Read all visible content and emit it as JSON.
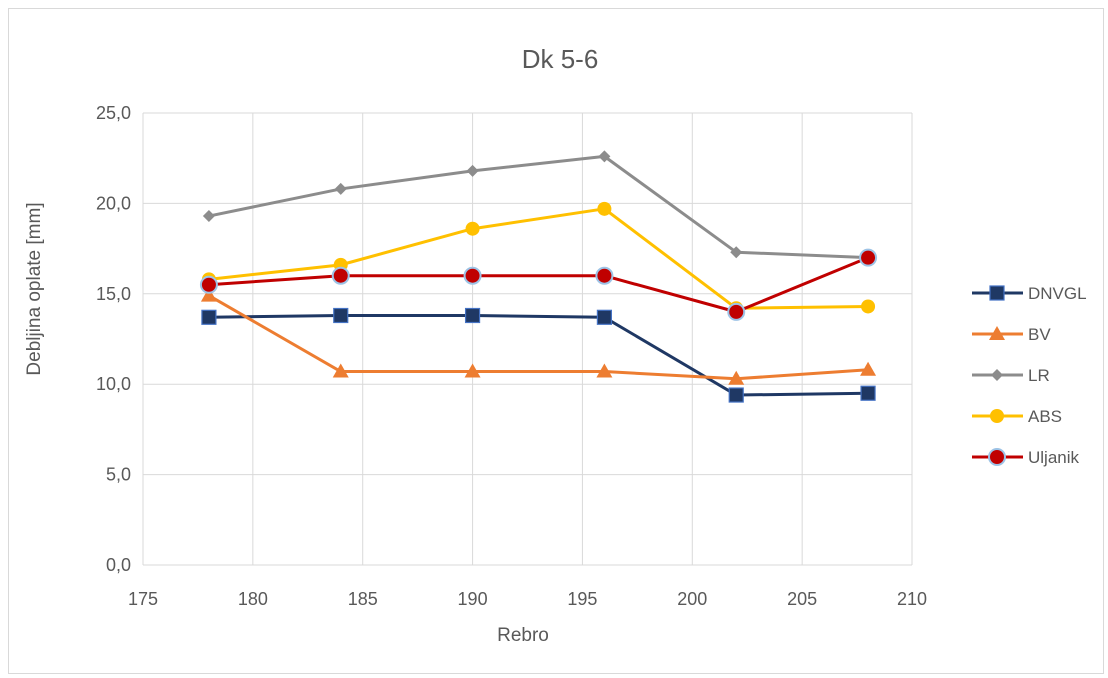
{
  "chart_data": {
    "type": "line",
    "title": "Dk 5-6",
    "xlabel": "Rebro",
    "ylabel": "Debljina oplate [mm]",
    "xlim": [
      175,
      210
    ],
    "ylim": [
      0,
      25
    ],
    "x_ticks": [
      "175",
      "180",
      "185",
      "190",
      "195",
      "200",
      "205",
      "210"
    ],
    "y_ticks": [
      "0,0",
      "5,0",
      "10,0",
      "15,0",
      "20,0",
      "25,0"
    ],
    "grid": true,
    "legend_position": "right",
    "x": [
      178,
      184,
      190,
      196,
      202,
      208
    ],
    "series": [
      {
        "name": "DNVGL",
        "color": "#1f3864",
        "marker": "square",
        "values": [
          13.7,
          13.8,
          13.8,
          13.7,
          9.4,
          9.5
        ]
      },
      {
        "name": "BV",
        "color": "#ed7d31",
        "marker": "triangle",
        "values": [
          14.9,
          10.7,
          10.7,
          10.7,
          10.3,
          10.8
        ]
      },
      {
        "name": "LR",
        "color": "#8c8c8c",
        "marker": "diamond",
        "values": [
          19.3,
          20.8,
          21.8,
          22.6,
          17.3,
          17.0
        ]
      },
      {
        "name": "ABS",
        "color": "#ffc000",
        "marker": "circle",
        "values": [
          15.8,
          16.6,
          18.6,
          19.7,
          14.2,
          14.3
        ]
      },
      {
        "name": "Uljanik",
        "color": "#c00000",
        "marker": "circle-outlined",
        "values": [
          15.5,
          16.0,
          16.0,
          16.0,
          14.0,
          17.0
        ]
      }
    ]
  }
}
